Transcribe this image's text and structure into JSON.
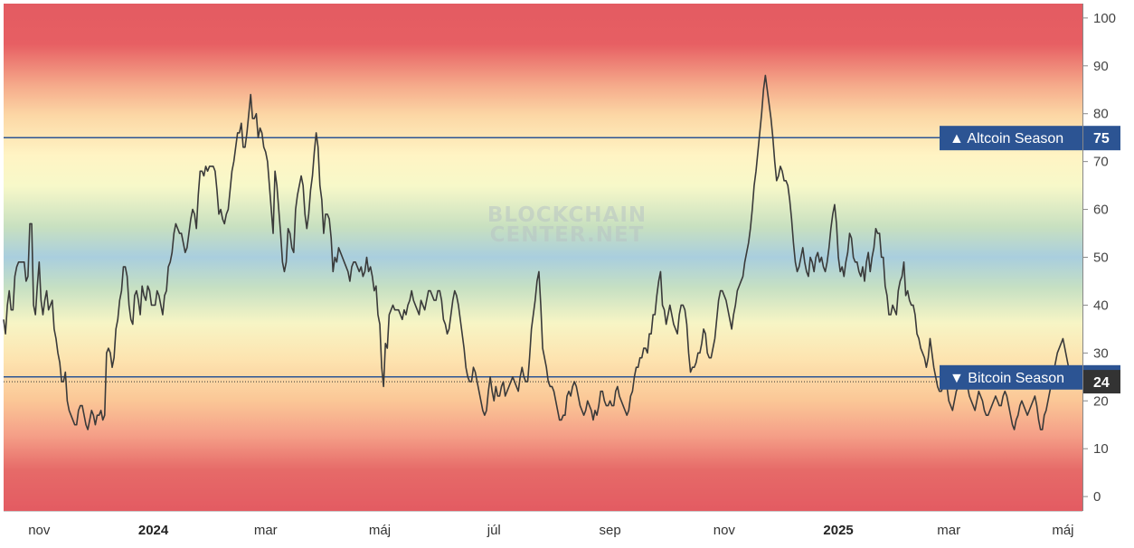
{
  "chart_data": {
    "type": "line",
    "watermark": [
      "BLOCKCHAIN",
      "CENTER.NET"
    ],
    "ylim": [
      -3,
      103
    ],
    "y_ticks": [
      0,
      10,
      20,
      30,
      40,
      50,
      60,
      70,
      80,
      90,
      100
    ],
    "x_ticks": [
      {
        "label": "nov",
        "bold": false,
        "t": 19
      },
      {
        "label": "2024",
        "bold": true,
        "t": 80
      },
      {
        "label": "mar",
        "bold": false,
        "t": 140
      },
      {
        "label": "máj",
        "bold": false,
        "t": 201
      },
      {
        "label": "júl",
        "bold": false,
        "t": 262
      },
      {
        "label": "sep",
        "bold": false,
        "t": 324
      },
      {
        "label": "nov",
        "bold": false,
        "t": 385
      },
      {
        "label": "2025",
        "bold": true,
        "t": 446
      },
      {
        "label": "mar",
        "bold": false,
        "t": 505
      },
      {
        "label": "máj",
        "bold": false,
        "t": 566
      }
    ],
    "thresholds": [
      {
        "label": "▲ Altcoin Season",
        "value": 75,
        "color": "#2c5493"
      },
      {
        "label": "▼ Bitcoin Season",
        "value": 25,
        "color": "#2c5493"
      }
    ],
    "current": {
      "value": 24,
      "color": "#333333"
    },
    "series": [
      {
        "color": "#3a3a3a",
        "values": [
          37,
          34,
          40,
          43,
          39,
          39,
          46,
          48,
          49,
          49,
          49,
          49,
          45,
          46,
          57,
          57,
          40,
          38,
          44,
          49,
          41,
          38,
          41,
          43,
          39,
          40,
          41,
          35,
          33,
          30,
          28,
          24,
          24,
          26,
          20,
          18,
          17,
          16,
          15,
          15,
          18,
          19,
          19,
          17,
          15,
          14,
          16,
          18,
          17,
          15,
          17,
          17,
          18,
          16,
          17,
          30,
          31,
          30,
          27,
          29,
          35,
          37,
          41,
          43,
          48,
          48,
          46,
          40,
          37,
          36,
          42,
          43,
          41,
          38,
          44,
          42,
          41,
          44,
          43,
          40,
          40,
          40,
          43,
          42,
          40,
          38,
          42,
          43,
          48,
          49,
          51,
          55,
          57,
          56,
          55,
          55,
          53,
          51,
          52,
          55,
          58,
          60,
          59,
          56,
          63,
          68,
          68,
          67,
          69,
          68,
          69,
          69,
          69,
          68,
          64,
          59,
          60,
          58,
          57,
          59,
          60,
          64,
          68,
          70,
          73,
          76,
          76,
          78,
          73,
          73,
          76,
          80,
          84,
          79,
          79,
          80,
          75,
          77,
          76,
          73,
          72,
          70,
          65,
          60,
          55,
          68,
          65,
          60,
          55,
          49,
          47,
          49,
          56,
          55,
          52,
          51,
          60,
          63,
          65,
          67,
          65,
          59,
          56,
          59,
          64,
          67,
          72,
          76,
          73,
          65,
          62,
          55,
          59,
          59,
          58,
          54,
          47,
          50,
          49,
          52,
          51,
          50,
          49,
          48,
          47,
          45,
          48,
          49,
          49,
          48,
          47,
          48,
          46,
          47,
          50,
          47,
          48,
          46,
          43,
          44,
          38,
          36,
          27,
          23,
          32,
          31,
          38,
          39,
          40,
          39,
          39,
          39,
          38,
          37,
          39,
          38,
          40,
          41,
          43,
          41,
          40,
          39,
          38,
          41,
          40,
          39,
          41,
          43,
          43,
          42,
          41,
          41,
          43,
          43,
          41,
          37,
          36,
          34,
          35,
          38,
          41,
          43,
          42,
          40,
          37,
          34,
          31,
          27,
          25,
          24,
          24,
          27,
          26,
          24,
          22,
          20,
          18,
          17,
          18,
          22,
          25,
          22,
          20,
          23,
          21,
          21,
          23,
          24,
          21,
          22,
          23,
          24,
          25,
          24,
          23,
          22,
          25,
          27,
          25,
          24,
          24,
          29,
          35,
          38,
          41,
          45,
          47,
          40,
          31,
          29,
          27,
          24,
          23,
          23,
          22,
          20,
          18,
          16,
          16,
          17,
          17,
          21,
          22,
          21,
          23,
          24,
          23,
          21,
          19,
          18,
          17,
          18,
          20,
          19,
          18,
          16,
          18,
          17,
          19,
          22,
          22,
          20,
          19,
          19,
          20,
          19,
          19,
          22,
          23,
          21,
          20,
          19,
          18,
          17,
          18,
          21,
          22,
          25,
          27,
          27,
          29,
          29,
          31,
          31,
          30,
          34,
          34,
          38,
          38,
          42,
          45,
          47,
          40,
          39,
          36,
          38,
          40,
          38,
          36,
          35,
          34,
          38,
          40,
          40,
          39,
          36,
          30,
          26,
          27,
          27,
          28,
          30,
          30,
          32,
          35,
          34,
          30,
          29,
          29,
          31,
          33,
          37,
          41,
          43,
          43,
          42,
          41,
          39,
          37,
          35,
          38,
          40,
          43,
          44,
          45,
          46,
          49,
          51,
          53,
          56,
          60,
          65,
          68,
          72,
          76,
          80,
          85,
          88,
          85,
          82,
          79,
          75,
          70,
          66,
          67,
          69,
          68,
          66,
          66,
          65,
          62,
          58,
          53,
          49,
          47,
          48,
          50,
          52,
          49,
          47,
          46,
          50,
          49,
          47,
          50,
          51,
          49,
          50,
          48,
          47,
          49,
          52,
          56,
          59,
          61,
          57,
          50,
          47,
          48,
          46,
          49,
          51,
          55,
          54,
          50,
          49,
          49,
          47,
          46,
          48,
          45,
          49,
          51,
          47,
          50,
          52,
          56,
          55,
          55,
          50,
          50,
          44,
          42,
          38,
          38,
          40,
          39,
          38,
          43,
          45,
          46,
          49,
          42,
          43,
          41,
          40,
          40,
          38,
          34,
          33,
          31,
          30,
          29,
          27,
          29,
          33,
          30,
          27,
          25,
          23,
          22,
          22,
          23,
          24,
          23,
          20,
          19,
          18,
          20,
          22,
          23,
          25,
          27,
          26,
          24,
          23,
          21,
          20,
          19,
          18,
          20,
          22,
          21,
          20,
          18,
          17,
          17,
          18,
          19,
          20,
          21,
          20,
          19,
          19,
          21,
          22,
          21,
          19,
          17,
          15,
          14,
          16,
          17,
          19,
          20,
          19,
          18,
          17,
          18,
          19,
          20,
          21,
          19,
          16,
          14,
          14,
          17,
          18,
          20,
          22,
          24,
          26,
          28,
          30,
          31,
          32,
          33,
          31,
          29,
          27,
          26,
          25,
          24,
          24,
          24
        ]
      }
    ]
  }
}
